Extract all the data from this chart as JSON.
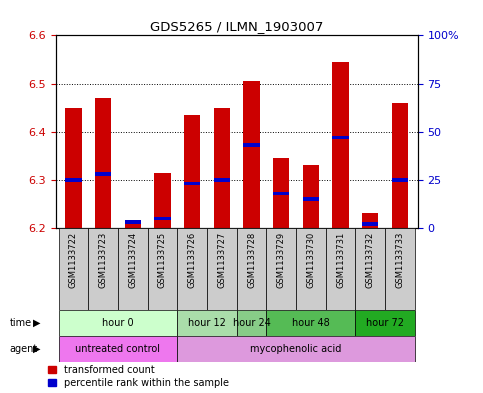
{
  "title": "GDS5265 / ILMN_1903007",
  "samples": [
    "GSM1133722",
    "GSM1133723",
    "GSM1133724",
    "GSM1133725",
    "GSM1133726",
    "GSM1133727",
    "GSM1133728",
    "GSM1133729",
    "GSM1133730",
    "GSM1133731",
    "GSM1133732",
    "GSM1133733"
  ],
  "transformed_count": [
    6.45,
    6.47,
    6.21,
    6.315,
    6.435,
    6.45,
    6.505,
    6.345,
    6.33,
    6.545,
    6.23,
    6.46
  ],
  "percentile_rank": [
    25,
    28,
    3,
    5,
    23,
    25,
    43,
    18,
    15,
    47,
    2,
    25
  ],
  "ylim": [
    6.2,
    6.6
  ],
  "yticks": [
    6.2,
    6.3,
    6.4,
    6.5,
    6.6
  ],
  "y2lim": [
    0,
    100
  ],
  "y2ticks": [
    0,
    25,
    50,
    75,
    100
  ],
  "y2ticklabels": [
    "0",
    "25",
    "50",
    "75",
    "100%"
  ],
  "bar_color": "#cc0000",
  "percentile_color": "#0000cc",
  "time_groups": [
    {
      "label": "hour 0",
      "indices": [
        0,
        1,
        2,
        3
      ],
      "color": "#ccffcc"
    },
    {
      "label": "hour 12",
      "indices": [
        4,
        5
      ],
      "color": "#aaddaa"
    },
    {
      "label": "hour 24",
      "indices": [
        6
      ],
      "color": "#88cc88"
    },
    {
      "label": "hour 48",
      "indices": [
        7,
        8,
        9
      ],
      "color": "#55bb55"
    },
    {
      "label": "hour 72",
      "indices": [
        10,
        11
      ],
      "color": "#22aa22"
    }
  ],
  "agent_untreated_color": "#ee77ee",
  "agent_myco_color": "#dd99dd",
  "sample_box_color": "#cccccc",
  "bar_bottom": 6.2,
  "bar_width": 0.55,
  "grid_linestyle": "dotted",
  "legend_items": [
    {
      "label": "transformed count",
      "color": "#cc0000"
    },
    {
      "label": "percentile rank within the sample",
      "color": "#0000cc"
    }
  ]
}
